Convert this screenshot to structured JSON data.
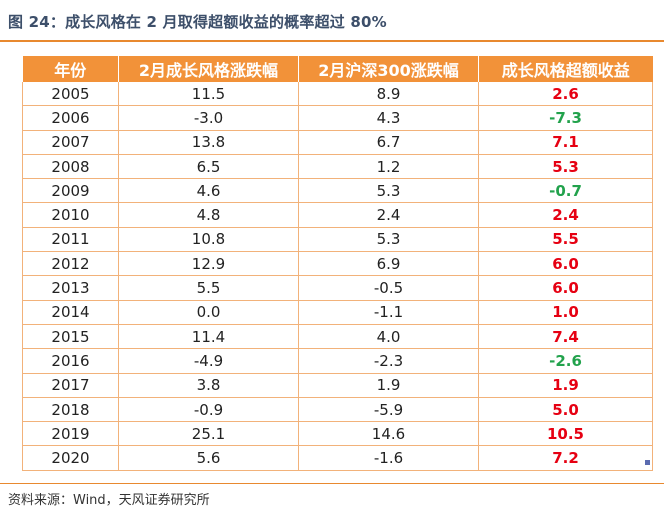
{
  "title": "图 24：成长风格在 2 月取得超额收益的概率超过 80%",
  "table": {
    "headers": [
      "年份",
      "2月成长风格涨跌幅",
      "2月沪深300涨跌幅",
      "成长风格超额收益"
    ],
    "rows": [
      [
        "2005",
        "11.5",
        "8.9",
        "2.6"
      ],
      [
        "2006",
        "-3.0",
        "4.3",
        "-7.3"
      ],
      [
        "2007",
        "13.8",
        "6.7",
        "7.1"
      ],
      [
        "2008",
        "6.5",
        "1.2",
        "5.3"
      ],
      [
        "2009",
        "4.6",
        "5.3",
        "-0.7"
      ],
      [
        "2010",
        "4.8",
        "2.4",
        "2.4"
      ],
      [
        "2011",
        "10.8",
        "5.3",
        "5.5"
      ],
      [
        "2012",
        "12.9",
        "6.9",
        "6.0"
      ],
      [
        "2013",
        "5.5",
        "-0.5",
        "6.0"
      ],
      [
        "2014",
        "0.0",
        "-1.1",
        "1.0"
      ],
      [
        "2015",
        "11.4",
        "4.0",
        "7.4"
      ],
      [
        "2016",
        "-4.9",
        "-2.3",
        "-2.6"
      ],
      [
        "2017",
        "3.8",
        "1.9",
        "1.9"
      ],
      [
        "2018",
        "-0.9",
        "-5.9",
        "5.0"
      ],
      [
        "2019",
        "25.1",
        "14.6",
        "10.5"
      ],
      [
        "2020",
        "5.6",
        "-1.6",
        "7.2"
      ]
    ]
  },
  "colors": {
    "header_bg": "#f29239",
    "positive": "#e60012",
    "negative": "#22a24c"
  },
  "source": "资料来源：Wind，天风证券研究所"
}
